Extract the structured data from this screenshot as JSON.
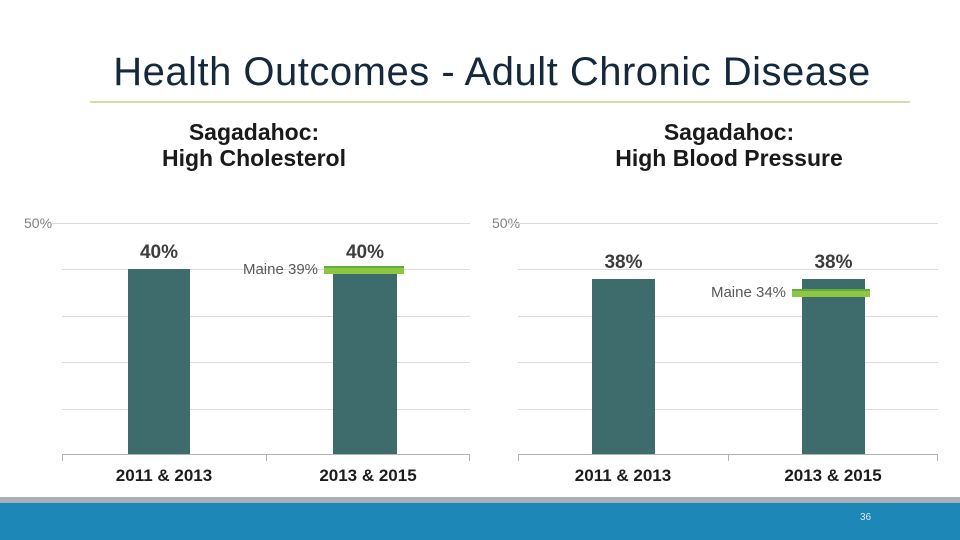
{
  "slide": {
    "title": "Health Outcomes - Adult Chronic Disease",
    "page_number": "36"
  },
  "colors": {
    "title_navy": "#16283c",
    "title_underline": "#d5dba2",
    "bar_teal": "#3e6b6b",
    "benchmark_green": "#8dc63f",
    "footer_blue": "#1d87b8",
    "footer_gray_strip": "#a9afb6",
    "gridline_gray": "#dcdcdc",
    "data_label_gray": "#3d3d3d",
    "axis_label_gray": "#7f7f7f"
  },
  "chart_data": [
    {
      "type": "bar",
      "title": "Sagadahoc: High Cholesterol",
      "title_lines": [
        "Sagadahoc:",
        "High Cholesterol"
      ],
      "categories": [
        "2011 & 2013",
        "2013 & 2015"
      ],
      "values": [
        40,
        40
      ],
      "data_labels": [
        "40%",
        "40%"
      ],
      "benchmark_line": {
        "label": "Maine 39%",
        "value": 39
      },
      "ylim": [
        0,
        50
      ],
      "ytick_label": "50%",
      "gridlines": [
        10,
        20,
        30,
        40,
        50
      ],
      "legend": "none",
      "grid": "horizontal"
    },
    {
      "type": "bar",
      "title": "Sagadahoc: High Blood Pressure",
      "title_lines": [
        "Sagadahoc:",
        "High Blood Pressure"
      ],
      "categories": [
        "2011 & 2013",
        "2013 & 2015"
      ],
      "values": [
        38,
        38
      ],
      "data_labels": [
        "38%",
        "38%"
      ],
      "benchmark_line": {
        "label": "Maine 34%",
        "value": 34
      },
      "ylim": [
        0,
        50
      ],
      "ytick_label": "50%",
      "gridlines": [
        10,
        20,
        30,
        40,
        50
      ],
      "legend": "none",
      "grid": "horizontal"
    }
  ]
}
